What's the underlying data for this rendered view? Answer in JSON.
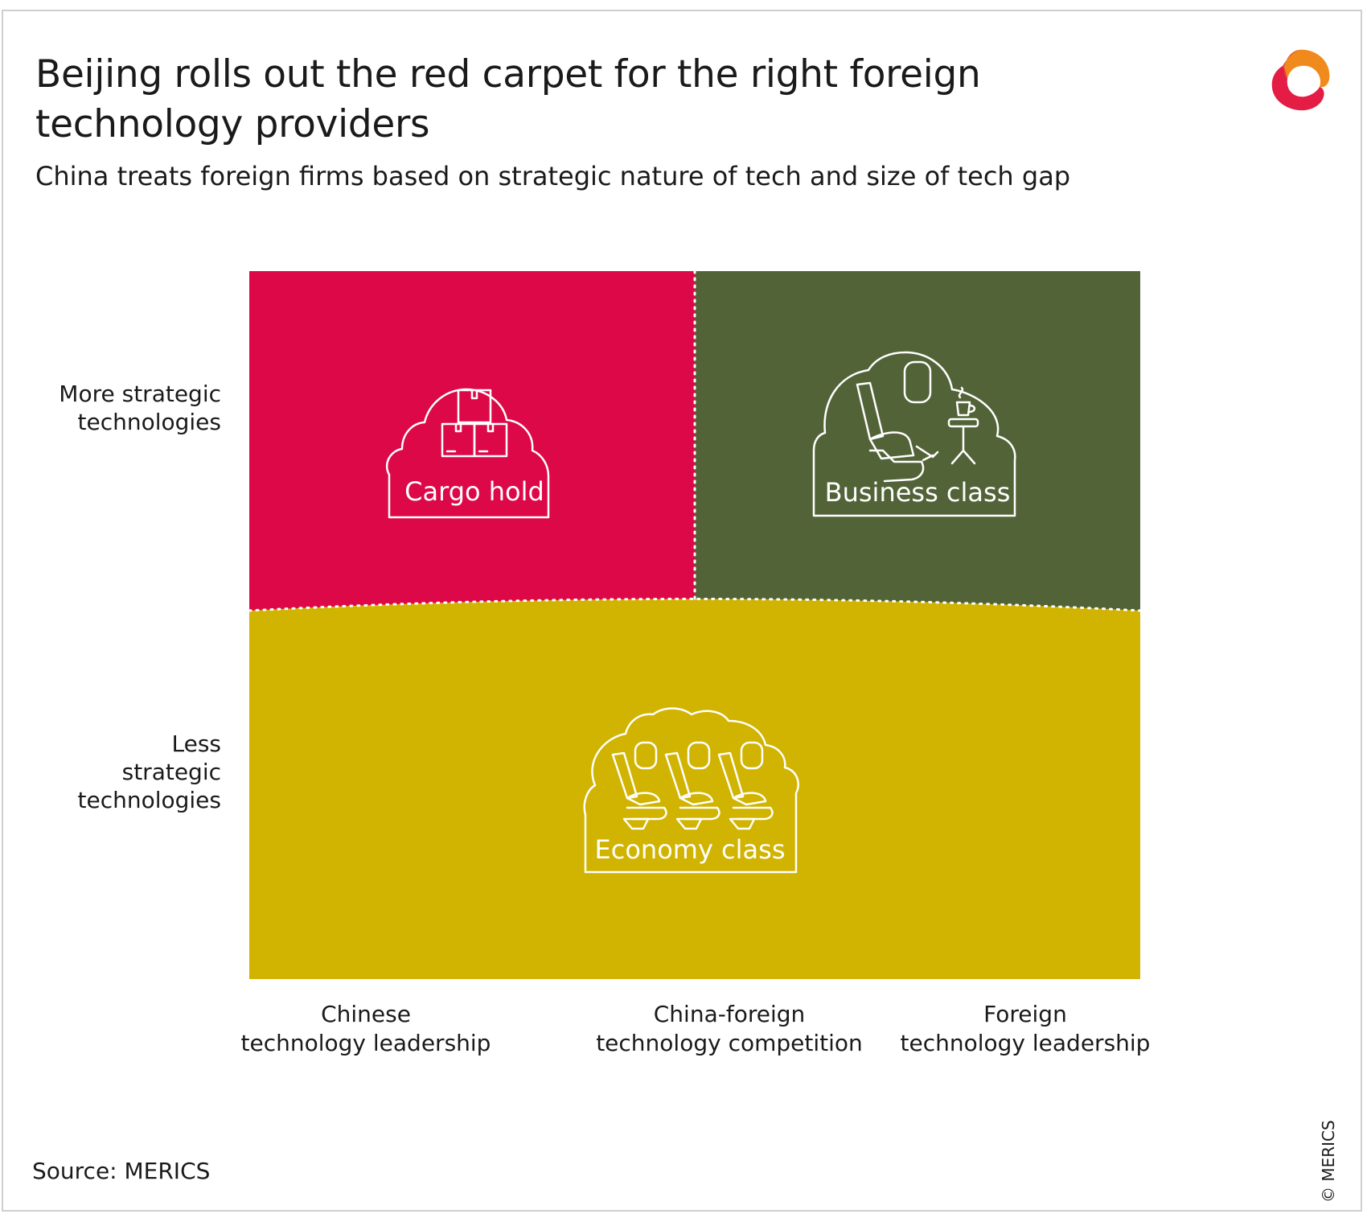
{
  "header": {
    "title_line1": "Beijing rolls out the red carpet for the right foreign",
    "title_line2": "technology providers",
    "subtitle": "China treats foreign firms based on strategic nature of tech and size of tech gap"
  },
  "y_axis": {
    "top_line1": "More strategic",
    "top_line2": "technologies",
    "bottom_line1": "Less",
    "bottom_line2": "strategic",
    "bottom_line3": "technologies"
  },
  "x_axis": [
    {
      "line1": "Chinese",
      "line2": "technology leadership"
    },
    {
      "line1": "China-foreign",
      "line2": "technology competition"
    },
    {
      "line1": "Foreign",
      "line2": "technology leadership"
    }
  ],
  "quadrants": {
    "cargo": {
      "label": "Cargo hold",
      "color": "#dc0848",
      "icon": "cargo-boxes-icon"
    },
    "business": {
      "label": "Business class",
      "color": "#536338",
      "icon": "business-seat-icon"
    },
    "economy": {
      "label": "Economy class",
      "color": "#d1b301",
      "icon": "economy-seats-icon"
    }
  },
  "footer": {
    "source": "Source: MERICS",
    "copyright": "© MERICS"
  },
  "brand": {
    "logo": "merics-logo-icon",
    "colors": [
      "#e31d43",
      "#f08a1c"
    ]
  }
}
